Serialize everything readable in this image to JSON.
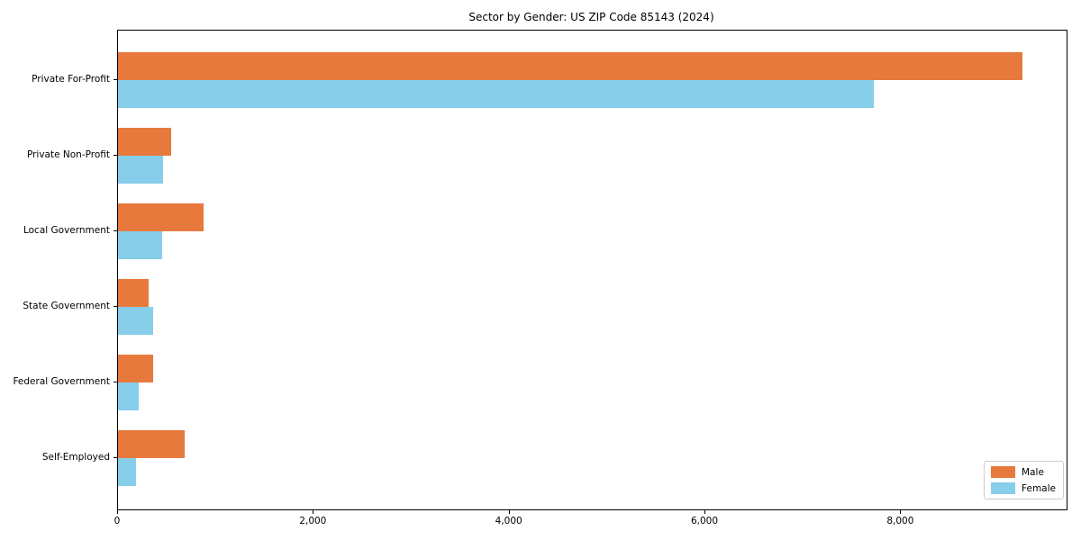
{
  "title": "Sector by Gender: US ZIP Code 85143 (2024)",
  "chart_data": {
    "type": "bar",
    "orientation": "horizontal",
    "title": "Sector by Gender: US ZIP Code 85143 (2024)",
    "categories": [
      "Private For-Profit",
      "Private Non-Profit",
      "Local Government",
      "State Government",
      "Federal Government",
      "Self-Employed"
    ],
    "series": [
      {
        "name": "Male",
        "color": "#e8793d",
        "values": [
          9235,
          540,
          870,
          315,
          355,
          685
        ]
      },
      {
        "name": "Female",
        "color": "#87ceeb",
        "values": [
          7720,
          460,
          455,
          355,
          210,
          180
        ]
      }
    ],
    "xlabel": "",
    "ylabel": "",
    "xlim": [
      0,
      9690
    ],
    "xticks": [
      {
        "value": 0,
        "label": "0"
      },
      {
        "value": 2000,
        "label": "2,000"
      },
      {
        "value": 4000,
        "label": "4,000"
      },
      {
        "value": 6000,
        "label": "6,000"
      },
      {
        "value": 8000,
        "label": "8,000"
      }
    ],
    "grid": false,
    "legend_position": "lower right"
  }
}
